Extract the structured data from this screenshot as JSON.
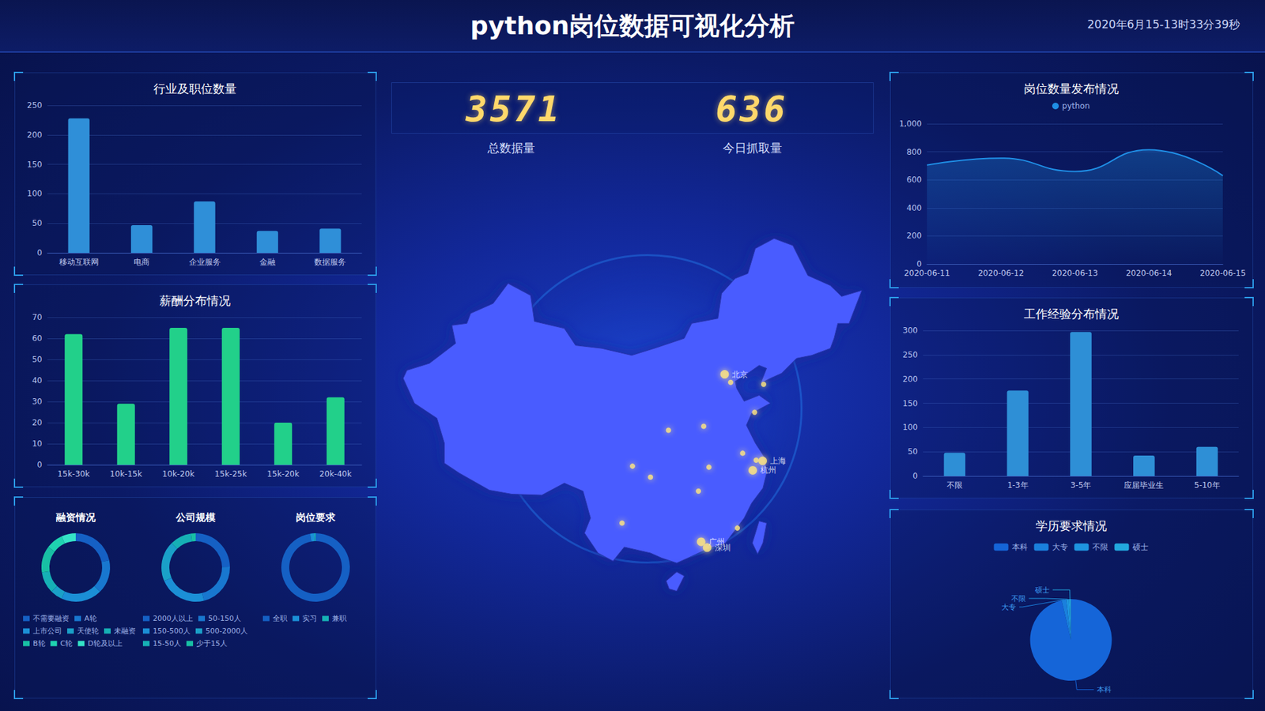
{
  "header": {
    "title": "python岗位数据可视化分析",
    "timestamp": "2020年6月15-13时33分39秒"
  },
  "stats": [
    {
      "value": 3571,
      "label": "总数据量"
    },
    {
      "value": 636,
      "label": "今日抓取量"
    }
  ],
  "chart_data": [
    {
      "type": "bar",
      "title": "行业及职位数量",
      "categories": [
        "移动互联网",
        "电商",
        "企业服务",
        "金融",
        "数据服务"
      ],
      "values": [
        228,
        47,
        87,
        37,
        41
      ],
      "color": "#2f8fd8",
      "ylim": [
        0,
        250
      ],
      "yticks": [
        0,
        50,
        100,
        150,
        200,
        250
      ],
      "grid": true
    },
    {
      "type": "bar",
      "title": "薪酬分布情况",
      "categories": [
        "15k-30k",
        "10k-15k",
        "10k-20k",
        "15k-25k",
        "15k-20k",
        "20k-40k"
      ],
      "values": [
        62,
        29,
        65,
        65,
        20,
        32
      ],
      "color": "#22d08a",
      "ylim": [
        0,
        70
      ],
      "yticks": [
        0,
        10,
        20,
        30,
        40,
        50,
        60,
        70
      ],
      "grid": true
    },
    {
      "type": "donut",
      "title": "融资情况",
      "legend": "bottom",
      "categories": [
        "不需要融资",
        "A轮",
        "上市公司",
        "天使轮",
        "未融资",
        "B轮",
        "C轮",
        "D轮及以上"
      ],
      "values": [
        95,
        70,
        85,
        25,
        45,
        55,
        35,
        30
      ],
      "colors": [
        "#1560c4",
        "#1877cf",
        "#1b8fd6",
        "#1aa0c8",
        "#16b0b5",
        "#18bfa4",
        "#1fd3b0",
        "#35e3c6"
      ]
    },
    {
      "type": "donut",
      "title": "公司规模",
      "legend": "bottom",
      "categories": [
        "2000人以上",
        "50-150人",
        "150-500人",
        "500-2000人",
        "15-50人",
        "少于15人"
      ],
      "values": [
        110,
        95,
        100,
        85,
        45,
        10
      ],
      "colors": [
        "#1560c4",
        "#1877cf",
        "#1b8fd6",
        "#1aa0c8",
        "#16b0b5",
        "#18bfa4"
      ]
    },
    {
      "type": "donut",
      "title": "岗位要求",
      "legend": "bottom",
      "categories": [
        "全职",
        "实习",
        "兼职"
      ],
      "values": [
        610,
        12,
        4
      ],
      "colors": [
        "#1560c4",
        "#1b8fd6",
        "#16b0b5"
      ]
    },
    {
      "type": "line",
      "title": "岗位数量发布情况",
      "legend": "top",
      "x": [
        "2020-06-11",
        "2020-06-12",
        "2020-06-13",
        "2020-06-14",
        "2020-06-15"
      ],
      "series": [
        {
          "name": "python",
          "color": "#1f8fe6",
          "values": [
            705,
            755,
            660,
            815,
            630
          ]
        }
      ],
      "ylim": [
        0,
        1000
      ],
      "yticks": [
        0,
        200,
        400,
        600,
        800,
        {
          "value": 1000,
          "label": "1,000"
        }
      ],
      "grid": true
    },
    {
      "type": "bar",
      "title": "工作经验分布情况",
      "categories": [
        "不限",
        "1-3年",
        "3-5年",
        "应届毕业生",
        "5-10年"
      ],
      "values": [
        48,
        176,
        297,
        42,
        60
      ],
      "color": "#2e8fd6",
      "ylim": [
        0,
        300
      ],
      "yticks": [
        0,
        50,
        100,
        150,
        200,
        250,
        300
      ],
      "grid": true
    },
    {
      "type": "pie",
      "title": "学历要求情况",
      "legend": "top",
      "categories": [
        "本科",
        "大专",
        "不限",
        "硕士"
      ],
      "values": [
        520,
        10,
        6,
        4
      ],
      "colors": [
        "#1565d8",
        "#1a80dd",
        "#1e95e0",
        "#22a8df"
      ]
    }
  ],
  "map": {
    "cities": [
      {
        "name": "北京",
        "coord": [
          116.4,
          39.9
        ]
      },
      {
        "name": "上海",
        "coord": [
          121.47,
          31.23
        ]
      },
      {
        "name": "杭州",
        "coord": [
          120.15,
          30.28
        ]
      },
      {
        "name": "广州",
        "coord": [
          113.26,
          23.13
        ]
      },
      {
        "name": "深圳",
        "coord": [
          114.06,
          22.54
        ]
      },
      {
        "name": null,
        "coord": [
          117.2,
          39.1
        ]
      },
      {
        "name": null,
        "coord": [
          121.6,
          38.9
        ]
      },
      {
        "name": null,
        "coord": [
          120.4,
          36.1
        ]
      },
      {
        "name": null,
        "coord": [
          113.6,
          34.7
        ]
      },
      {
        "name": null,
        "coord": [
          108.9,
          34.3
        ]
      },
      {
        "name": null,
        "coord": [
          118.8,
          32.0
        ]
      },
      {
        "name": null,
        "coord": [
          120.6,
          31.3
        ]
      },
      {
        "name": null,
        "coord": [
          104.1,
          30.7
        ]
      },
      {
        "name": null,
        "coord": [
          106.5,
          29.6
        ]
      },
      {
        "name": null,
        "coord": [
          114.3,
          30.6
        ]
      },
      {
        "name": null,
        "coord": [
          112.9,
          28.2
        ]
      },
      {
        "name": null,
        "coord": [
          102.7,
          25.0
        ]
      },
      {
        "name": null,
        "coord": [
          118.1,
          24.5
        ]
      }
    ]
  }
}
